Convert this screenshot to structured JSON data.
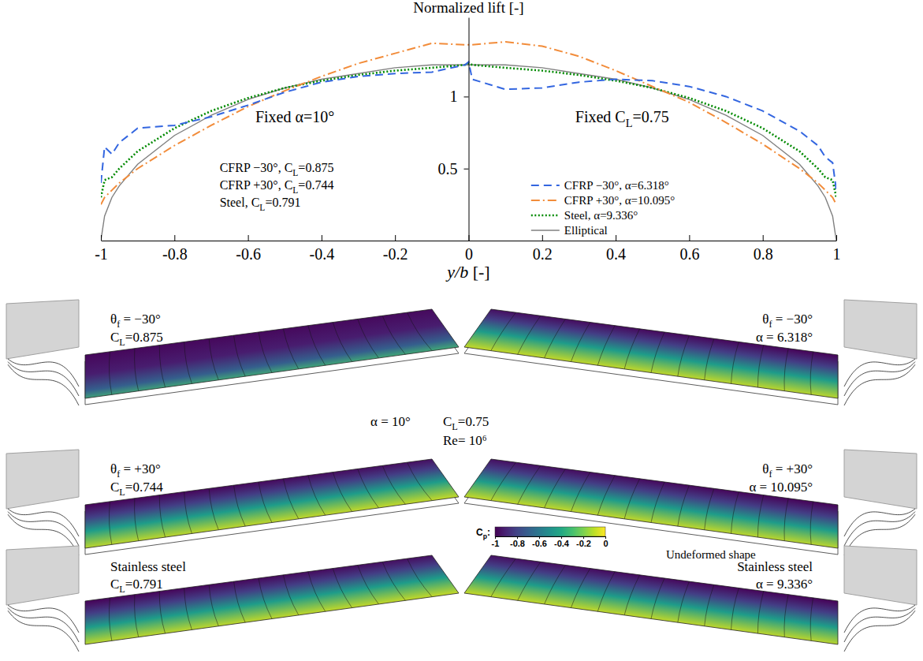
{
  "chart_data": {
    "type": "line",
    "x_label": "y/b [-]",
    "y_label": "Normalized lift [-]",
    "annotations": [
      "Fixed α=10°",
      "Fixed CL=0.75",
      "CFRP −30°, CL=0.875",
      "CFRP +30°, CL=0.744",
      "Steel, CL=0.791"
    ],
    "x": [
      -1,
      -0.99,
      -0.97,
      -0.95,
      -0.9,
      -0.8,
      -0.7,
      -0.6,
      -0.5,
      -0.4,
      -0.3,
      -0.2,
      -0.1,
      -0.01,
      0,
      0.01,
      0.1,
      0.2,
      0.3,
      0.4,
      0.5,
      0.6,
      0.7,
      0.8,
      0.9,
      0.95,
      0.97,
      0.99,
      1
    ],
    "series": [
      {
        "name": "CFRP −30°, α=6.318°",
        "color": "#3366e0",
        "line_style": "dashed",
        "values": [
          0.4,
          0.65,
          0.6,
          0.68,
          0.78,
          0.8,
          0.86,
          0.94,
          1.03,
          1.1,
          1.14,
          1.16,
          1.17,
          1.22,
          1.24,
          1.12,
          1.05,
          1.06,
          1.1,
          1.12,
          1.11,
          1.07,
          1.0,
          0.9,
          0.76,
          0.66,
          0.58,
          0.54,
          0.35
        ]
      },
      {
        "name": "CFRP +30°, α=10.095°",
        "color": "#f28c3a",
        "line_style": "dashdot",
        "values": [
          0.25,
          0.3,
          0.35,
          0.4,
          0.5,
          0.66,
          0.8,
          0.93,
          1.04,
          1.14,
          1.23,
          1.3,
          1.37,
          1.36,
          1.36,
          1.36,
          1.38,
          1.35,
          1.28,
          1.18,
          1.07,
          0.96,
          0.82,
          0.67,
          0.5,
          0.4,
          0.35,
          0.3,
          0.25
        ]
      },
      {
        "name": "Steel, α=9.336°",
        "color": "#008a00",
        "line_style": "dotted",
        "values": [
          0.3,
          0.42,
          0.44,
          0.5,
          0.62,
          0.78,
          0.9,
          0.99,
          1.06,
          1.11,
          1.15,
          1.18,
          1.2,
          1.22,
          1.23,
          1.22,
          1.2,
          1.18,
          1.15,
          1.11,
          1.06,
          0.99,
          0.9,
          0.78,
          0.62,
          0.5,
          0.44,
          0.42,
          0.3
        ]
      },
      {
        "name": "Elliptical",
        "color": "#808080",
        "line_style": "solid",
        "values": [
          0,
          0.17,
          0.3,
          0.38,
          0.53,
          0.73,
          0.87,
          0.98,
          1.06,
          1.12,
          1.16,
          1.2,
          1.22,
          1.22,
          1.22,
          1.22,
          1.22,
          1.2,
          1.16,
          1.12,
          1.06,
          0.98,
          0.87,
          0.73,
          0.53,
          0.38,
          0.3,
          0.17,
          0
        ]
      }
    ],
    "xlim": [
      -1,
      1
    ],
    "xticks": [
      -1,
      -0.8,
      -0.6,
      -0.4,
      -0.2,
      0,
      0.2,
      0.4,
      0.6,
      0.8,
      1
    ],
    "ylim": [
      0,
      1.55
    ],
    "yticks": [
      0.5,
      1
    ],
    "legend": "lower right",
    "grid": false
  },
  "renders": {
    "rows": [
      {
        "left": [
          "θf = −30°",
          "CL=0.875"
        ],
        "right": [
          "θf = −30°",
          "α = 6.318°"
        ]
      },
      {
        "left": [
          "θf = +30°",
          "CL=0.744"
        ],
        "right": [
          "θf = +30°",
          "α = 10.095°"
        ]
      },
      {
        "left": [
          "Stainless steel",
          "CL=0.791"
        ],
        "right": [
          "Stainless steel",
          "α = 9.336°"
        ]
      }
    ],
    "center": [
      "α = 10°",
      "CL=0.75",
      "Re= 10⁶"
    ],
    "colorbar": {
      "label": "Cp:",
      "range": [
        -1,
        0
      ],
      "ticks": [
        -1,
        -0.8,
        -0.6,
        -0.4,
        -0.2,
        0
      ]
    },
    "undeformed_label": "Undeformed shape"
  }
}
